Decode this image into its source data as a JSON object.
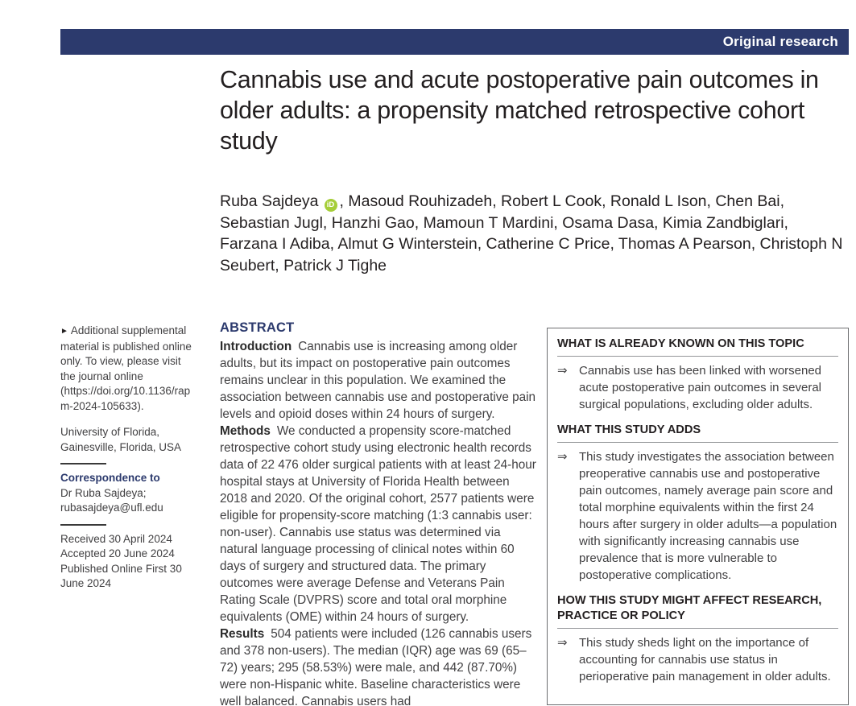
{
  "banner": {
    "label": "Original research",
    "bg_color": "#2c3a6d",
    "text_color": "#ffffff"
  },
  "article": {
    "title": "Cannabis use and acute postoperative pain outcomes in older adults: a propensity matched retrospective cohort study",
    "authors": {
      "first_author": "Ruba Sajdeya",
      "orcid_icon": "iD",
      "rest": ", Masoud Rouhizadeh, Robert L Cook, Ronald L Ison, Chen Bai, Sebastian Jugl, Hanzhi Gao, Mamoun T Mardini, Osama Dasa, Kimia Zandbiglari, Farzana I Adiba, Almut G Winterstein, Catherine C Price, Thomas A Pearson, Christoph N Seubert, Patrick J Tighe"
    }
  },
  "sidebar": {
    "arrow_icon": "►",
    "supplemental_note": "Additional supplemental material is published online only. To view, please visit the journal online (https://doi.org/10.1136/rapm-2024-105633).",
    "affiliation": "University of Florida, Gainesville, Florida, USA",
    "correspondence_heading": "Correspondence to",
    "correspondence_name": "Dr Ruba Sajdeya;",
    "correspondence_email": "rubasajdeya@ufl.edu",
    "history": [
      "Received 30 April 2024",
      "Accepted 20 June 2024",
      "Published Online First 30 June 2024"
    ]
  },
  "abstract": {
    "heading": "ABSTRACT",
    "paragraphs": [
      {
        "label": "Introduction",
        "text": "Cannabis use is increasing among older adults, but its impact on postoperative pain outcomes remains unclear in this population. We examined the association between cannabis use and postoperative pain levels and opioid doses within 24 hours of surgery."
      },
      {
        "label": "Methods",
        "text": "We conducted a propensity score-matched retrospective cohort study using electronic health records data of 22 476 older surgical patients with at least 24-hour hospital stays at University of Florida Health between 2018 and 2020. Of the original cohort, 2577 patients were eligible for propensity-score matching (1:3 cannabis user: non-user). Cannabis use status was determined via natural language processing of clinical notes within 60 days of surgery and structured data. The primary outcomes were average Defense and Veterans Pain Rating Scale (DVPRS) score and total oral morphine equivalents (OME) within 24 hours of surgery."
      },
      {
        "label": "Results",
        "text": "504 patients were included (126 cannabis users and 378 non-users). The median (IQR) age was 69 (65–72) years; 295 (58.53%) were male, and 442 (87.70%) were non-Hispanic white. Baseline characteristics were well balanced. Cannabis users had"
      }
    ]
  },
  "key_messages": {
    "bullet_icon": "⇒",
    "sections": [
      {
        "heading": "WHAT IS ALREADY KNOWN ON THIS TOPIC",
        "items": [
          "Cannabis use has been linked with worsened acute postoperative pain outcomes in several surgical populations, excluding older adults."
        ]
      },
      {
        "heading": "WHAT THIS STUDY ADDS",
        "items": [
          "This study investigates the association between preoperative cannabis use and postoperative pain outcomes, namely average pain score and total morphine equivalents within the first 24 hours after surgery in older adults—a population with significantly increasing cannabis use prevalence that is more vulnerable to postoperative complications."
        ]
      },
      {
        "heading": "HOW THIS STUDY MIGHT AFFECT RESEARCH, PRACTICE OR POLICY",
        "items": [
          "This study sheds light on the importance of accounting for cannabis use status in perioperative pain management in older adults."
        ]
      }
    ]
  },
  "colors": {
    "accent_navy": "#2c3a6d",
    "orcid_green": "#a6ce39",
    "body_text": "#414042"
  }
}
